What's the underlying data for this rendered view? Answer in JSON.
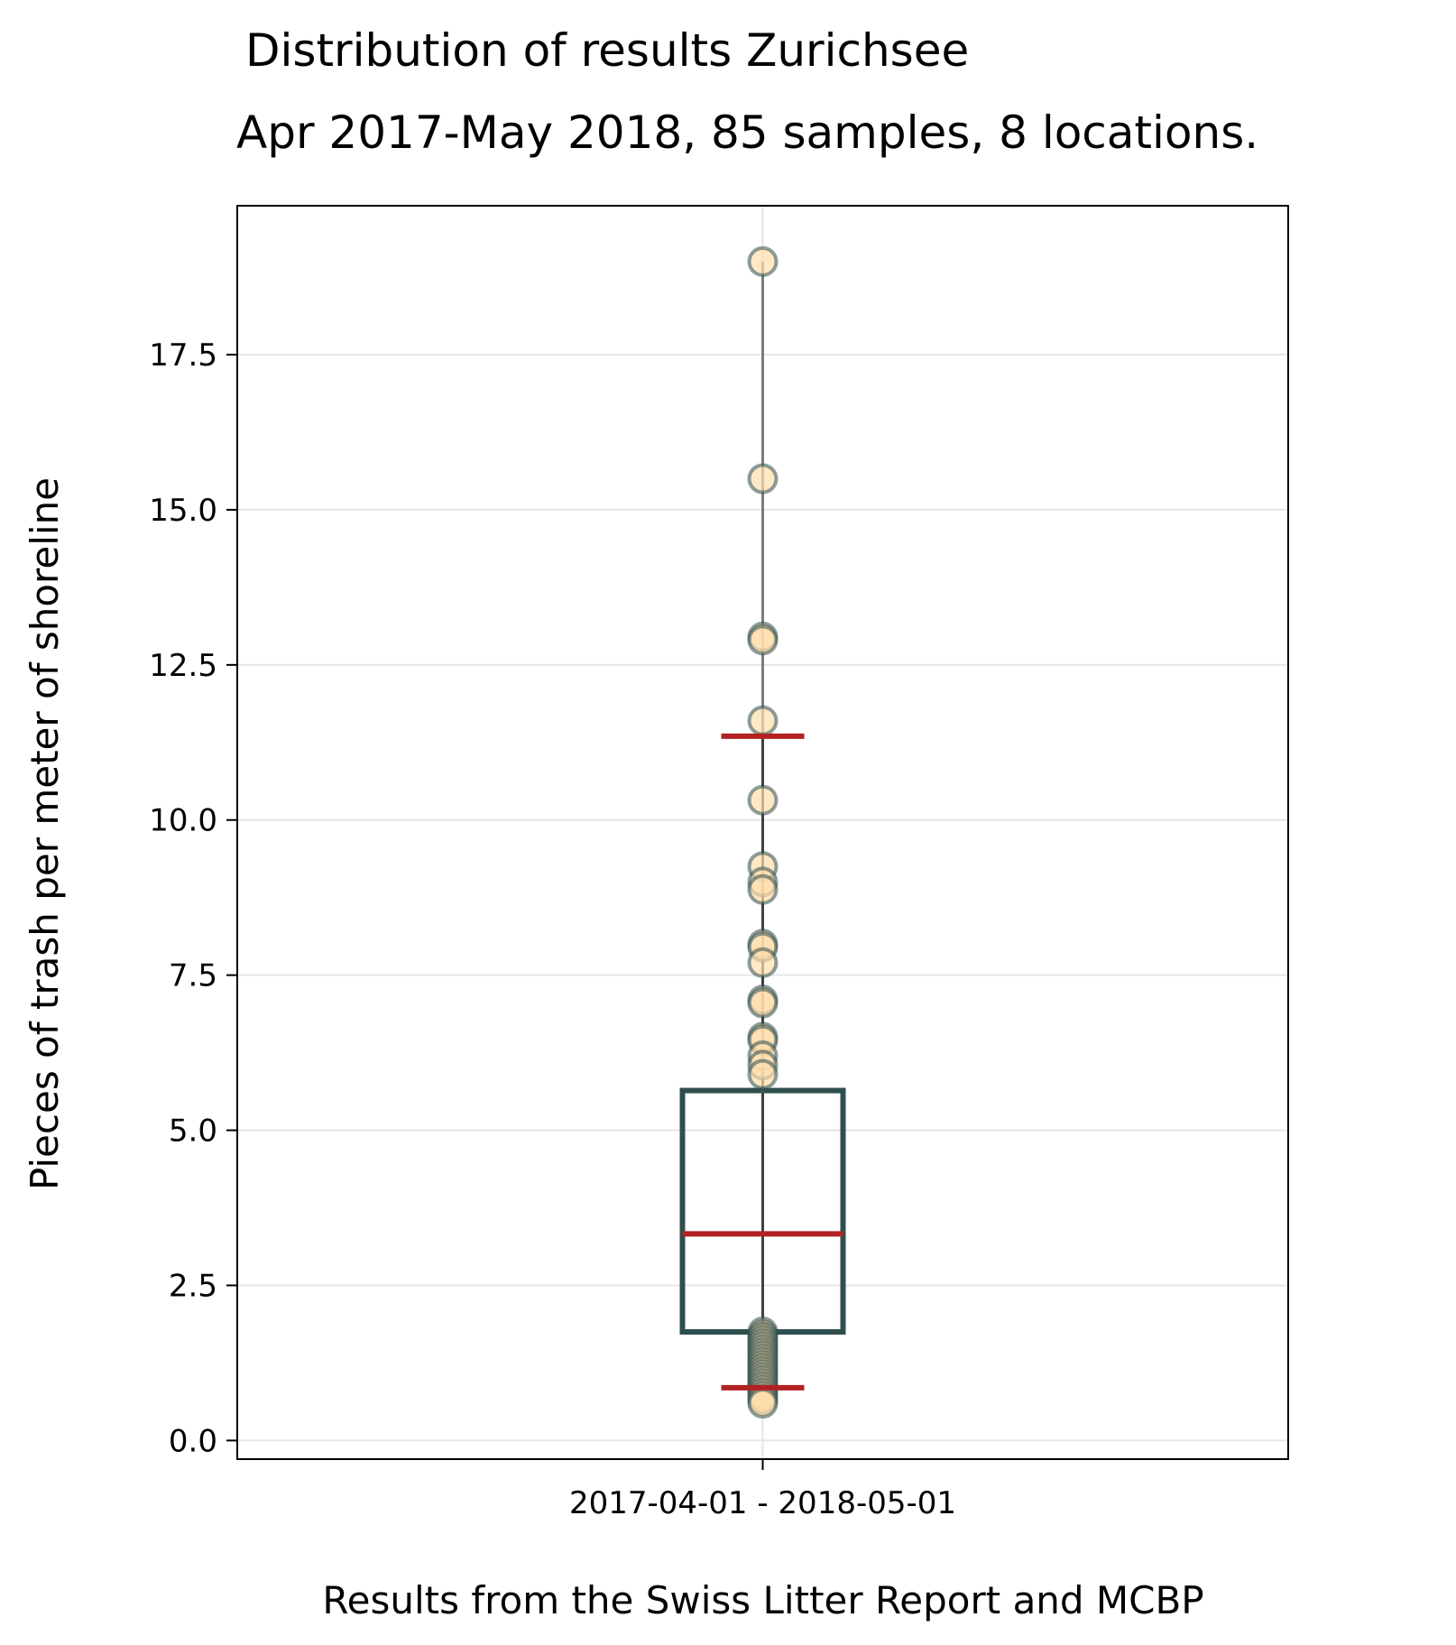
{
  "chart_data": {
    "type": "box",
    "title": "Distribution of results Zurichsee",
    "subtitle": "Apr 2017-May 2018, 85 samples, 8 locations.",
    "xlabel": "Results from the Swiss Litter Report and MCBP",
    "ylabel": "Pieces of trash per meter of shoreline",
    "categories": [
      "2017-04-01 - 2018-05-01"
    ],
    "ylim": [
      -0.3,
      19.9
    ],
    "yticks": [
      0.0,
      2.5,
      5.0,
      7.5,
      10.0,
      12.5,
      15.0,
      17.5
    ],
    "ytick_labels": [
      "0.0",
      "2.5",
      "5.0",
      "7.5",
      "10.0",
      "12.5",
      "15.0",
      "17.5"
    ],
    "grid": "horizontal and vertical",
    "box": {
      "q1": 1.75,
      "median": 3.33,
      "q3": 5.64,
      "whisker_low": 0.85,
      "whisker_high": 11.35
    },
    "range": {
      "min": 0.6,
      "max": 19.0
    },
    "points": [
      19.0,
      15.5,
      12.95,
      12.9,
      11.6,
      10.32,
      9.25,
      9.0,
      8.88,
      8.0,
      7.95,
      7.7,
      7.1,
      7.05,
      6.5,
      6.45,
      6.2,
      6.05,
      5.9,
      1.75,
      1.7,
      1.65,
      1.6,
      1.55,
      1.5,
      1.45,
      1.4,
      1.35,
      1.3,
      1.25,
      1.2,
      1.15,
      1.1,
      1.05,
      1.0,
      0.95,
      0.9,
      0.85,
      0.8,
      0.75,
      0.7,
      0.65,
      0.6
    ],
    "colors": {
      "box": "#2f4f4f",
      "median": "#b22222",
      "whisker_caps": "#b22222",
      "points_fill": "#ffdead",
      "points_edge": "#2f4f4f",
      "grid": "#e6e6e6"
    }
  }
}
